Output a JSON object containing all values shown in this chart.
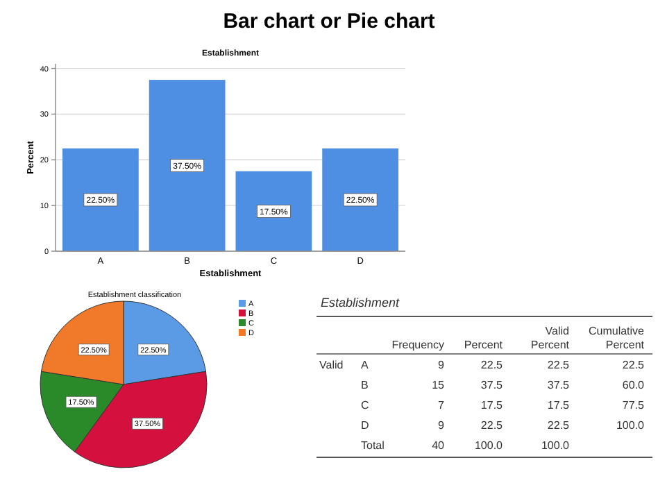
{
  "chart_data": [
    {
      "type": "bar",
      "title": "Bar chart or Pie chart",
      "subtitle": "Establishment",
      "xlabel": "Establishment",
      "ylabel": "Percent",
      "categories": [
        "A",
        "B",
        "C",
        "D"
      ],
      "values": [
        22.5,
        37.5,
        17.5,
        22.5
      ],
      "value_labels": [
        "22.50%",
        "37.50%",
        "17.50%",
        "22.50%"
      ],
      "color": "#4f8fe3",
      "ylim": [
        0,
        41
      ],
      "yticks": [
        0,
        10,
        20,
        30,
        40
      ],
      "grid": "y"
    },
    {
      "type": "pie",
      "title": "Establishment classification",
      "categories": [
        "A",
        "B",
        "C",
        "D"
      ],
      "values": [
        22.5,
        37.5,
        17.5,
        22.5
      ],
      "value_labels": [
        "22.50%",
        "37.50%",
        "17.50%",
        "22.50%"
      ],
      "colors": [
        "#5b9be6",
        "#d4103f",
        "#2a8a2a",
        "#f07a2a"
      ],
      "legend": "top right"
    },
    {
      "type": "other",
      "title": "Establishment",
      "annotations": [
        "Valid"
      ],
      "categories": [
        "A",
        "B",
        "C",
        "D",
        "Total"
      ],
      "series": [
        {
          "name": "Frequency",
          "values": [
            9,
            15,
            7,
            9,
            40
          ],
          "value_labels": [
            "9",
            "15",
            "7",
            "9",
            "40"
          ]
        },
        {
          "name": "Percent",
          "values": [
            22.5,
            37.5,
            17.5,
            22.5,
            100
          ],
          "value_labels": [
            "22.5",
            "37.5",
            "17.5",
            "22.5",
            "100.0"
          ]
        },
        {
          "name": "Valid Percent",
          "values": [
            22.5,
            37.5,
            17.5,
            22.5,
            100
          ],
          "value_labels": [
            "22.5",
            "37.5",
            "17.5",
            "22.5",
            "100.0"
          ]
        },
        {
          "name": "Cumulative Percent",
          "values": [
            22.5,
            60,
            77.5,
            100,
            null
          ],
          "value_labels": [
            "22.5",
            "60.0",
            "77.5",
            "100.0",
            null
          ]
        }
      ]
    }
  ]
}
